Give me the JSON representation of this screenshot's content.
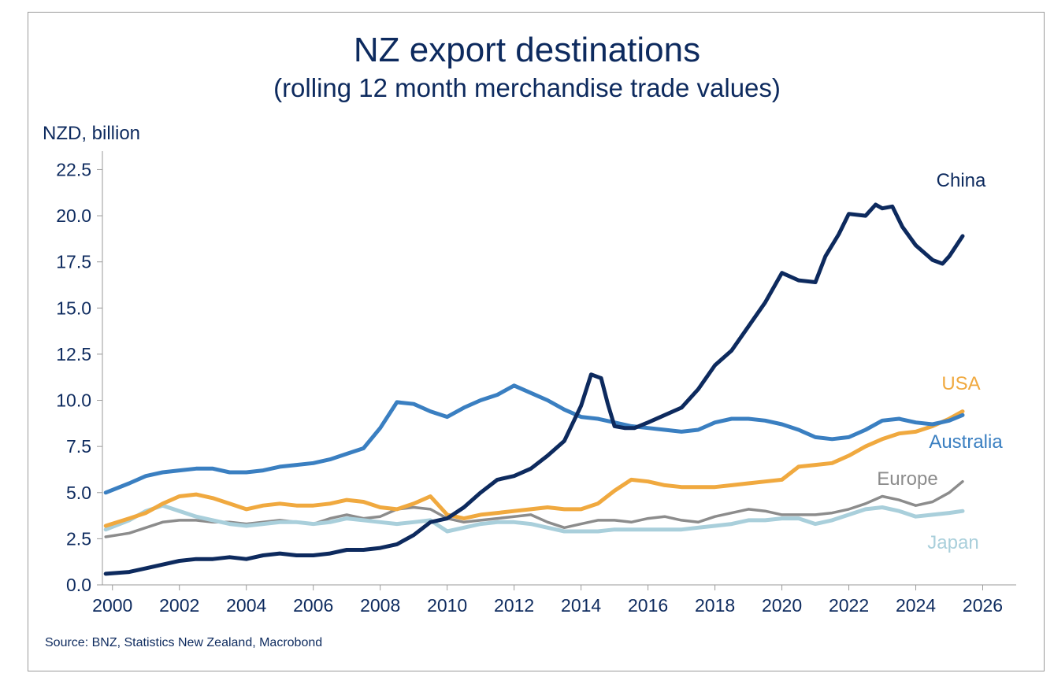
{
  "chart_data": {
    "type": "line",
    "title": "NZ export destinations",
    "subtitle": "(rolling 12 month merchandise trade values)",
    "ylabel": "NZD, billion",
    "xlabel": "",
    "source": "Source: BNZ, Statistics New Zealand, Macrobond",
    "xlim": [
      1999.7,
      2027.0
    ],
    "ylim": [
      0,
      23.5
    ],
    "x_ticks": [
      2000,
      2002,
      2004,
      2006,
      2008,
      2010,
      2012,
      2014,
      2016,
      2018,
      2020,
      2022,
      2024,
      2026
    ],
    "x_tick_labels": [
      "2000",
      "2002",
      "2004",
      "2006",
      "2008",
      "2010",
      "2012",
      "2014",
      "2016",
      "2018",
      "2020",
      "2022",
      "2024",
      "2026"
    ],
    "y_ticks": [
      0,
      2.5,
      5,
      7.5,
      10,
      12.5,
      15,
      17.5,
      20,
      22.5
    ],
    "y_tick_labels": [
      "0.0",
      "2.5",
      "5.0",
      "7.5",
      "10.0",
      "12.5",
      "15.0",
      "17.5",
      "20.0",
      "22.5"
    ],
    "grid": false,
    "series": [
      {
        "name": "Europe",
        "color": "#8c8c8c",
        "x": [
          1999.8,
          2000.5,
          2001.0,
          2001.5,
          2002.0,
          2002.5,
          2003.0,
          2003.5,
          2004.0,
          2004.5,
          2005.0,
          2005.5,
          2006.0,
          2006.5,
          2007.0,
          2007.5,
          2008.0,
          2008.5,
          2009.0,
          2009.5,
          2010.0,
          2010.5,
          2011.0,
          2011.5,
          2012.0,
          2012.5,
          2013.0,
          2013.5,
          2014.0,
          2014.5,
          2015.0,
          2015.5,
          2016.0,
          2016.5,
          2017.0,
          2017.5,
          2018.0,
          2018.5,
          2019.0,
          2019.5,
          2020.0,
          2020.5,
          2021.0,
          2021.5,
          2022.0,
          2022.5,
          2023.0,
          2023.5,
          2024.0,
          2024.5,
          2025.0,
          2025.4
        ],
        "y": [
          2.6,
          2.8,
          3.1,
          3.4,
          3.5,
          3.5,
          3.4,
          3.4,
          3.3,
          3.4,
          3.5,
          3.4,
          3.3,
          3.6,
          3.8,
          3.6,
          3.7,
          4.1,
          4.2,
          4.1,
          3.6,
          3.4,
          3.5,
          3.6,
          3.7,
          3.8,
          3.4,
          3.1,
          3.3,
          3.5,
          3.5,
          3.4,
          3.6,
          3.7,
          3.5,
          3.4,
          3.7,
          3.9,
          4.1,
          4.0,
          3.8,
          3.8,
          3.8,
          3.9,
          4.1,
          4.4,
          4.8,
          4.6,
          4.3,
          4.5,
          5.0,
          5.6
        ]
      },
      {
        "name": "Japan",
        "color": "#a9cfdb",
        "x": [
          1999.8,
          2000.5,
          2001.0,
          2001.5,
          2002.0,
          2002.5,
          2003.0,
          2003.5,
          2004.0,
          2004.5,
          2005.0,
          2005.5,
          2006.0,
          2006.5,
          2007.0,
          2007.5,
          2008.0,
          2008.5,
          2009.0,
          2009.5,
          2010.0,
          2010.5,
          2011.0,
          2011.5,
          2012.0,
          2012.5,
          2013.0,
          2013.5,
          2014.0,
          2014.5,
          2015.0,
          2015.5,
          2016.0,
          2016.5,
          2017.0,
          2017.5,
          2018.0,
          2018.5,
          2019.0,
          2019.5,
          2020.0,
          2020.5,
          2021.0,
          2021.5,
          2022.0,
          2022.5,
          2023.0,
          2023.5,
          2024.0,
          2024.5,
          2025.0,
          2025.4
        ],
        "y": [
          3.0,
          3.5,
          4.0,
          4.3,
          4.0,
          3.7,
          3.5,
          3.3,
          3.2,
          3.3,
          3.4,
          3.4,
          3.3,
          3.4,
          3.6,
          3.5,
          3.4,
          3.3,
          3.4,
          3.5,
          2.9,
          3.1,
          3.3,
          3.4,
          3.4,
          3.3,
          3.1,
          2.9,
          2.9,
          2.9,
          3.0,
          3.0,
          3.0,
          3.0,
          3.0,
          3.1,
          3.2,
          3.3,
          3.5,
          3.5,
          3.6,
          3.6,
          3.3,
          3.5,
          3.8,
          4.1,
          4.2,
          4.0,
          3.7,
          3.8,
          3.9,
          4.0
        ]
      },
      {
        "name": "USA",
        "color": "#f0a93f",
        "x": [
          1999.8,
          2000.5,
          2001.0,
          2001.5,
          2002.0,
          2002.5,
          2003.0,
          2003.5,
          2004.0,
          2004.5,
          2005.0,
          2005.5,
          2006.0,
          2006.5,
          2007.0,
          2007.5,
          2008.0,
          2008.5,
          2009.0,
          2009.5,
          2010.0,
          2010.5,
          2011.0,
          2011.5,
          2012.0,
          2012.5,
          2013.0,
          2013.5,
          2014.0,
          2014.5,
          2015.0,
          2015.5,
          2016.0,
          2016.5,
          2017.0,
          2017.5,
          2018.0,
          2018.5,
          2019.0,
          2019.5,
          2020.0,
          2020.5,
          2021.0,
          2021.5,
          2022.0,
          2022.5,
          2023.0,
          2023.5,
          2024.0,
          2024.5,
          2025.0,
          2025.4
        ],
        "y": [
          3.2,
          3.6,
          3.9,
          4.4,
          4.8,
          4.9,
          4.7,
          4.4,
          4.1,
          4.3,
          4.4,
          4.3,
          4.3,
          4.4,
          4.6,
          4.5,
          4.2,
          4.1,
          4.4,
          4.8,
          3.8,
          3.6,
          3.8,
          3.9,
          4.0,
          4.1,
          4.2,
          4.1,
          4.1,
          4.4,
          5.1,
          5.7,
          5.6,
          5.4,
          5.3,
          5.3,
          5.3,
          5.4,
          5.5,
          5.6,
          5.7,
          6.4,
          6.5,
          6.6,
          7.0,
          7.5,
          7.9,
          8.2,
          8.3,
          8.6,
          9.0,
          9.4
        ]
      },
      {
        "name": "Australia",
        "color": "#3a7fc1",
        "x": [
          1999.8,
          2000.5,
          2001.0,
          2001.5,
          2002.0,
          2002.5,
          2003.0,
          2003.5,
          2004.0,
          2004.5,
          2005.0,
          2005.5,
          2006.0,
          2006.5,
          2007.0,
          2007.5,
          2008.0,
          2008.5,
          2009.0,
          2009.5,
          2010.0,
          2010.5,
          2011.0,
          2011.5,
          2012.0,
          2012.5,
          2013.0,
          2013.5,
          2014.0,
          2014.5,
          2015.0,
          2015.5,
          2016.0,
          2016.5,
          2017.0,
          2017.5,
          2018.0,
          2018.5,
          2019.0,
          2019.5,
          2020.0,
          2020.5,
          2021.0,
          2021.5,
          2022.0,
          2022.5,
          2023.0,
          2023.5,
          2024.0,
          2024.5,
          2025.0,
          2025.4
        ],
        "y": [
          5.0,
          5.5,
          5.9,
          6.1,
          6.2,
          6.3,
          6.3,
          6.1,
          6.1,
          6.2,
          6.4,
          6.5,
          6.6,
          6.8,
          7.1,
          7.4,
          8.5,
          9.9,
          9.8,
          9.4,
          9.1,
          9.6,
          10.0,
          10.3,
          10.8,
          10.4,
          10.0,
          9.5,
          9.1,
          9.0,
          8.8,
          8.6,
          8.5,
          8.4,
          8.3,
          8.4,
          8.8,
          9.0,
          9.0,
          8.9,
          8.7,
          8.4,
          8.0,
          7.9,
          8.0,
          8.4,
          8.9,
          9.0,
          8.8,
          8.7,
          8.9,
          9.2
        ]
      },
      {
        "name": "China",
        "color": "#0d2a5e",
        "x": [
          1999.8,
          2000.5,
          2001.0,
          2001.5,
          2002.0,
          2002.5,
          2003.0,
          2003.5,
          2004.0,
          2004.5,
          2005.0,
          2005.5,
          2006.0,
          2006.5,
          2007.0,
          2007.5,
          2008.0,
          2008.5,
          2009.0,
          2009.5,
          2010.0,
          2010.5,
          2011.0,
          2011.5,
          2012.0,
          2012.5,
          2013.0,
          2013.5,
          2014.0,
          2014.3,
          2014.6,
          2014.8,
          2015.0,
          2015.3,
          2015.6,
          2016.0,
          2016.5,
          2017.0,
          2017.5,
          2018.0,
          2018.5,
          2019.0,
          2019.5,
          2020.0,
          2020.5,
          2021.0,
          2021.3,
          2021.7,
          2022.0,
          2022.5,
          2022.8,
          2023.0,
          2023.3,
          2023.6,
          2024.0,
          2024.5,
          2024.8,
          2025.0,
          2025.4
        ],
        "y": [
          0.6,
          0.7,
          0.9,
          1.1,
          1.3,
          1.4,
          1.4,
          1.5,
          1.4,
          1.6,
          1.7,
          1.6,
          1.6,
          1.7,
          1.9,
          1.9,
          2.0,
          2.2,
          2.7,
          3.4,
          3.6,
          4.2,
          5.0,
          5.7,
          5.9,
          6.3,
          7.0,
          7.8,
          9.7,
          11.4,
          11.2,
          9.8,
          8.6,
          8.5,
          8.5,
          8.8,
          9.2,
          9.6,
          10.6,
          11.9,
          12.7,
          14.0,
          15.3,
          16.9,
          16.5,
          16.4,
          17.8,
          19.0,
          20.1,
          20.0,
          20.6,
          20.4,
          20.5,
          19.4,
          18.4,
          17.6,
          17.4,
          17.8,
          18.9
        ]
      }
    ],
    "series_labels": [
      {
        "text": "China",
        "color": "#0d2a5e"
      },
      {
        "text": "USA",
        "color": "#f0a93f"
      },
      {
        "text": "Australia",
        "color": "#3a7fc1"
      },
      {
        "text": "Europe",
        "color": "#8c8c8c"
      },
      {
        "text": "Japan",
        "color": "#a9cfdb"
      }
    ]
  }
}
